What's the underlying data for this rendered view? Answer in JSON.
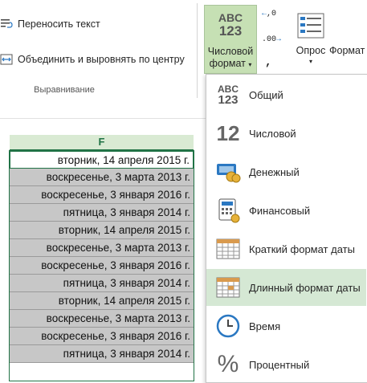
{
  "ribbon": {
    "wrap_text": "Переносить текст",
    "merge_center": "Объединить и выровнять по центру",
    "alignment_group": "Выравнивание",
    "number_format_line1": "Числовой",
    "number_format_line2": "формат",
    "number_format_icon_text1": "ABC",
    "number_format_icon_text2": "123",
    "increase_decimal": ".00",
    "decrease_decimal": ",0",
    "comma": ",",
    "survey": "Опрос",
    "format": "Формат"
  },
  "grid": {
    "column_letter": "F",
    "cells": [
      "вторник, 14 апреля 2015 г.",
      "воскресенье, 3 марта 2013 г.",
      "воскресенье, 3 января 2016 г.",
      "пятница, 3 января 2014 г.",
      "вторник, 14 апреля 2015 г.",
      "воскресенье, 3 марта 2013 г.",
      "воскресенье, 3 января 2016 г.",
      "пятница, 3 января 2014 г.",
      "вторник, 14 апреля 2015 г.",
      "воскресенье, 3 марта 2013 г.",
      "воскресенье, 3 января 2016 г.",
      "пятница, 3 января 2014 г."
    ]
  },
  "menu": {
    "items": [
      {
        "label": "Общий",
        "icon": "general-format-icon",
        "icon_text1": "ABC",
        "icon_text2": "123"
      },
      {
        "label": "Числовой",
        "icon": "number-format-icon",
        "icon_text1": "12"
      },
      {
        "label": "Денежный",
        "icon": "currency-format-icon"
      },
      {
        "label": "Финансовый",
        "icon": "accounting-format-icon"
      },
      {
        "label": "Краткий формат даты",
        "icon": "short-date-icon"
      },
      {
        "label": "Длинный формат даты",
        "icon": "long-date-icon"
      },
      {
        "label": "Время",
        "icon": "time-icon"
      },
      {
        "label": "Процентный",
        "icon": "percent-icon",
        "icon_text1": "%"
      }
    ],
    "highlighted_index": 5
  },
  "colors": {
    "accent": "#217346",
    "highlight": "#d5e8d4",
    "selection_fill": "#c7c7c7"
  }
}
